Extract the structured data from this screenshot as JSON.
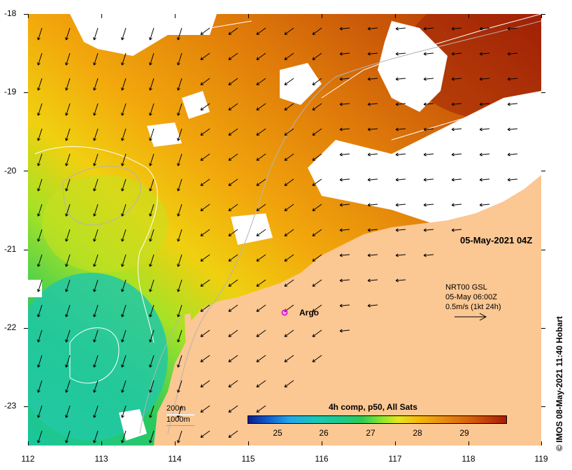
{
  "map": {
    "y_ticks": [
      "-18",
      "-19",
      "-20",
      "-21",
      "-22",
      "-23"
    ],
    "x_ticks": [
      "112",
      "113",
      "114",
      "115",
      "116",
      "117",
      "118",
      "119"
    ],
    "timestamp": "05-May-2021 04Z",
    "argo_label": "Argo",
    "currents": {
      "line1": "NRT00 GSL",
      "line2": "05-May 06:00Z",
      "line3": "0.5m/s (1kt 24h)"
    },
    "contours": {
      "c200": "200m",
      "c1000": "1000m"
    },
    "colorbar": {
      "title": "4h comp, p50, All Sats",
      "ticks": [
        "25",
        "26",
        "27",
        "28",
        "29"
      ]
    },
    "credit": "© IMOS 08-May-2021 11:40 Hobart",
    "colors": {
      "land": "#fbc793",
      "arrow": "#000000",
      "argo": "#e020e0"
    }
  }
}
